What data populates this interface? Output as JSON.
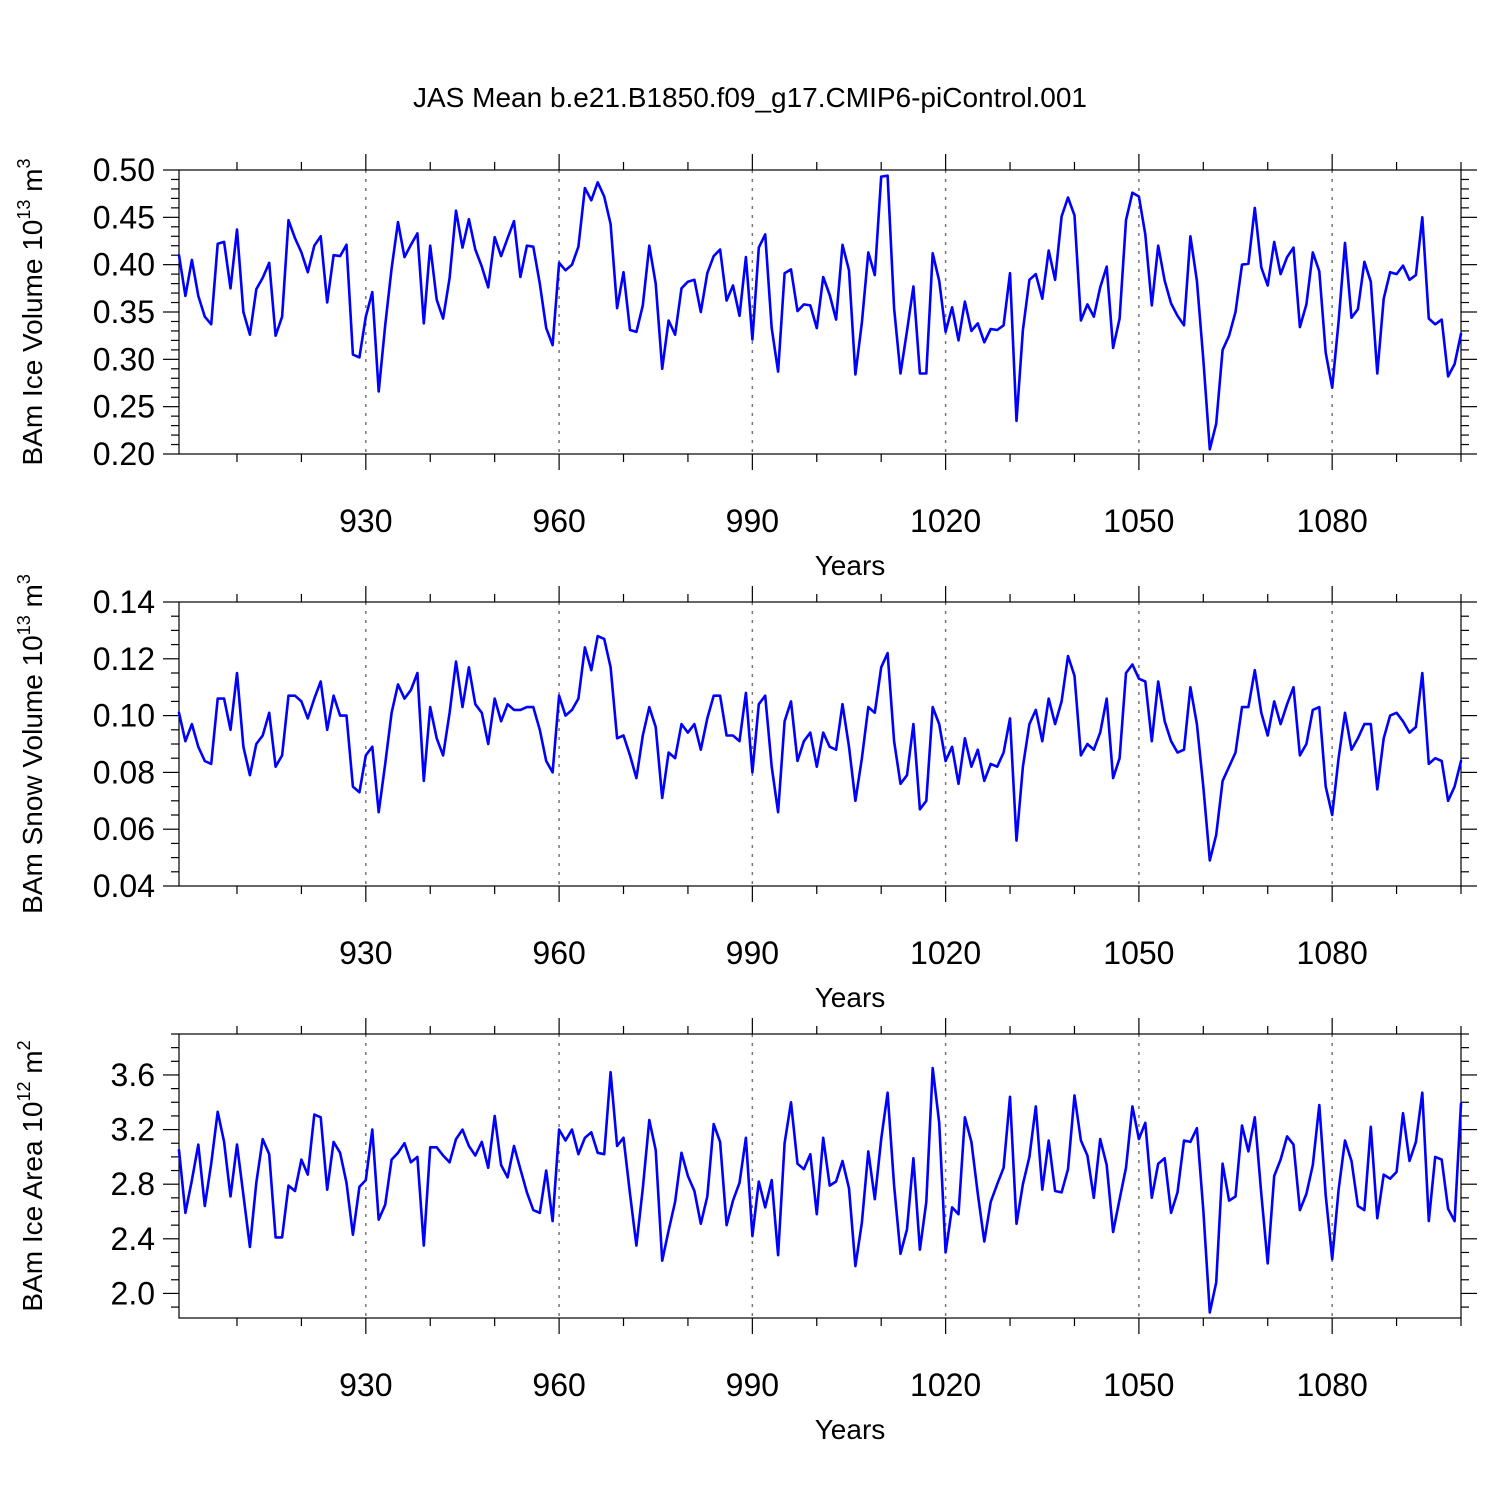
{
  "figure": {
    "title": "JAS Mean b.e21.B1850.f09_g17.CMIP6-piControl.001"
  },
  "colors": {
    "series": "#0000ff",
    "grid": "#777777",
    "axis": "#000000"
  },
  "chart_data": [
    {
      "type": "line",
      "title": "",
      "ylabel": "BAm Ice Volume 10",
      "ylabel_sup": "13",
      "ylabel_unit": "m",
      "ylabel_unit_sup": "3",
      "xlabel": "Years",
      "x_start": 901,
      "xlim": [
        901,
        1100
      ],
      "ylim": [
        0.2,
        0.5
      ],
      "yticks": [
        0.2,
        0.25,
        0.3,
        0.35,
        0.4,
        0.45,
        0.5
      ],
      "ytick_labels": [
        "0.20",
        "0.25",
        "0.30",
        "0.35",
        "0.40",
        "0.45",
        "0.50"
      ],
      "y_minor_step": 0.01,
      "xticks": [
        930,
        960,
        990,
        1020,
        1050,
        1080
      ],
      "xtick_labels": [
        "930",
        "960",
        "990",
        "1020",
        "1050",
        "1080"
      ],
      "x_minor_step": 10,
      "grid_x": true,
      "series": [
        {
          "name": "BAm Ice Volume",
          "values": [
            0.41,
            0.367,
            0.405,
            0.367,
            0.345,
            0.337,
            0.422,
            0.424,
            0.375,
            0.437,
            0.35,
            0.326,
            0.374,
            0.386,
            0.402,
            0.325,
            0.345,
            0.447,
            0.428,
            0.413,
            0.392,
            0.42,
            0.43,
            0.36,
            0.41,
            0.409,
            0.421,
            0.305,
            0.302,
            0.345,
            0.371,
            0.266,
            0.336,
            0.396,
            0.445,
            0.408,
            0.421,
            0.433,
            0.338,
            0.42,
            0.363,
            0.343,
            0.386,
            0.457,
            0.418,
            0.448,
            0.416,
            0.398,
            0.376,
            0.429,
            0.409,
            0.428,
            0.446,
            0.387,
            0.42,
            0.419,
            0.38,
            0.333,
            0.315,
            0.402,
            0.394,
            0.4,
            0.419,
            0.481,
            0.468,
            0.487,
            0.472,
            0.443,
            0.354,
            0.392,
            0.331,
            0.329,
            0.357,
            0.42,
            0.38,
            0.29,
            0.341,
            0.326,
            0.375,
            0.382,
            0.384,
            0.35,
            0.391,
            0.409,
            0.416,
            0.362,
            0.378,
            0.346,
            0.408,
            0.321,
            0.418,
            0.432,
            0.333,
            0.287,
            0.391,
            0.395,
            0.351,
            0.358,
            0.357,
            0.333,
            0.387,
            0.368,
            0.342,
            0.421,
            0.394,
            0.284,
            0.339,
            0.413,
            0.389,
            0.493,
            0.494,
            0.354,
            0.285,
            0.33,
            0.377,
            0.285,
            0.285,
            0.412,
            0.383,
            0.329,
            0.355,
            0.32,
            0.361,
            0.33,
            0.338,
            0.318,
            0.332,
            0.331,
            0.336,
            0.391,
            0.235,
            0.331,
            0.384,
            0.39,
            0.364,
            0.415,
            0.384,
            0.451,
            0.471,
            0.452,
            0.341,
            0.358,
            0.345,
            0.376,
            0.398,
            0.312,
            0.343,
            0.447,
            0.476,
            0.472,
            0.432,
            0.357,
            0.42,
            0.383,
            0.359,
            0.346,
            0.336,
            0.43,
            0.383,
            0.3,
            0.205,
            0.232,
            0.31,
            0.325,
            0.35,
            0.4,
            0.401,
            0.46,
            0.397,
            0.378,
            0.424,
            0.39,
            0.408,
            0.418,
            0.334,
            0.358,
            0.413,
            0.393,
            0.307,
            0.27,
            0.34,
            0.423,
            0.344,
            0.353,
            0.403,
            0.382,
            0.285,
            0.364,
            0.392,
            0.39,
            0.399,
            0.384,
            0.389,
            0.45,
            0.343,
            0.337,
            0.342,
            0.282,
            0.295,
            0.327
          ]
        }
      ]
    },
    {
      "type": "line",
      "title": "",
      "ylabel": "BAm Snow Volume 10",
      "ylabel_sup": "13",
      "ylabel_unit": "m",
      "ylabel_unit_sup": "3",
      "xlabel": "Years",
      "x_start": 901,
      "xlim": [
        901,
        1100
      ],
      "ylim": [
        0.04,
        0.14
      ],
      "yticks": [
        0.04,
        0.06,
        0.08,
        0.1,
        0.12,
        0.14
      ],
      "ytick_labels": [
        "0.04",
        "0.06",
        "0.08",
        "0.10",
        "0.12",
        "0.14"
      ],
      "y_minor_step": 0.005,
      "xticks": [
        930,
        960,
        990,
        1020,
        1050,
        1080
      ],
      "xtick_labels": [
        "930",
        "960",
        "990",
        "1020",
        "1050",
        "1080"
      ],
      "x_minor_step": 10,
      "grid_x": true,
      "series": [
        {
          "name": "BAm Snow Volume",
          "values": [
            0.101,
            0.091,
            0.097,
            0.089,
            0.084,
            0.083,
            0.106,
            0.106,
            0.095,
            0.115,
            0.089,
            0.079,
            0.09,
            0.093,
            0.101,
            0.082,
            0.086,
            0.107,
            0.107,
            0.105,
            0.099,
            0.106,
            0.112,
            0.095,
            0.107,
            0.1,
            0.1,
            0.075,
            0.073,
            0.086,
            0.089,
            0.066,
            0.083,
            0.101,
            0.111,
            0.106,
            0.109,
            0.115,
            0.077,
            0.103,
            0.092,
            0.086,
            0.101,
            0.119,
            0.103,
            0.117,
            0.104,
            0.101,
            0.09,
            0.106,
            0.098,
            0.104,
            0.102,
            0.102,
            0.103,
            0.103,
            0.095,
            0.084,
            0.08,
            0.107,
            0.1,
            0.102,
            0.106,
            0.124,
            0.116,
            0.128,
            0.127,
            0.117,
            0.092,
            0.093,
            0.086,
            0.078,
            0.093,
            0.103,
            0.096,
            0.071,
            0.087,
            0.085,
            0.097,
            0.094,
            0.097,
            0.088,
            0.099,
            0.107,
            0.107,
            0.093,
            0.093,
            0.091,
            0.108,
            0.08,
            0.104,
            0.107,
            0.082,
            0.066,
            0.098,
            0.105,
            0.084,
            0.091,
            0.094,
            0.082,
            0.094,
            0.089,
            0.088,
            0.104,
            0.089,
            0.07,
            0.085,
            0.103,
            0.101,
            0.117,
            0.122,
            0.091,
            0.076,
            0.079,
            0.097,
            0.067,
            0.07,
            0.103,
            0.097,
            0.084,
            0.089,
            0.076,
            0.092,
            0.082,
            0.088,
            0.077,
            0.083,
            0.082,
            0.087,
            0.099,
            0.056,
            0.082,
            0.097,
            0.102,
            0.091,
            0.106,
            0.097,
            0.105,
            0.121,
            0.114,
            0.086,
            0.09,
            0.088,
            0.094,
            0.106,
            0.078,
            0.085,
            0.115,
            0.118,
            0.113,
            0.112,
            0.091,
            0.112,
            0.098,
            0.091,
            0.087,
            0.088,
            0.11,
            0.097,
            0.075,
            0.049,
            0.058,
            0.077,
            0.082,
            0.087,
            0.103,
            0.103,
            0.116,
            0.101,
            0.093,
            0.105,
            0.097,
            0.104,
            0.11,
            0.086,
            0.09,
            0.102,
            0.103,
            0.075,
            0.065,
            0.085,
            0.101,
            0.088,
            0.092,
            0.097,
            0.097,
            0.074,
            0.092,
            0.1,
            0.101,
            0.098,
            0.094,
            0.096,
            0.115,
            0.083,
            0.085,
            0.084,
            0.07,
            0.075,
            0.084
          ]
        }
      ]
    },
    {
      "type": "line",
      "title": "",
      "ylabel": "BAm Ice Area 10",
      "ylabel_sup": "12",
      "ylabel_unit": "m",
      "ylabel_unit_sup": "2",
      "xlabel": "Years",
      "x_start": 901,
      "xlim": [
        901,
        1100
      ],
      "ylim": [
        1.82,
        3.9
      ],
      "yticks": [
        2.0,
        2.4,
        2.8,
        3.2,
        3.6
      ],
      "ytick_labels": [
        "2.0",
        "2.4",
        "2.8",
        "3.2",
        "3.6"
      ],
      "y_minor_step": 0.1,
      "xticks": [
        930,
        960,
        990,
        1020,
        1050,
        1080
      ],
      "xtick_labels": [
        "930",
        "960",
        "990",
        "1020",
        "1050",
        "1080"
      ],
      "x_minor_step": 10,
      "grid_x": true,
      "series": [
        {
          "name": "BAm Ice Area",
          "values": [
            3.05,
            2.59,
            2.83,
            3.09,
            2.64,
            2.95,
            3.33,
            3.11,
            2.71,
            3.09,
            2.72,
            2.34,
            2.81,
            3.13,
            3.02,
            2.41,
            2.41,
            2.79,
            2.75,
            2.98,
            2.87,
            3.31,
            3.29,
            2.76,
            3.11,
            3.03,
            2.81,
            2.43,
            2.78,
            2.83,
            3.2,
            2.54,
            2.65,
            2.98,
            3.03,
            3.1,
            2.96,
            3.0,
            2.35,
            3.07,
            3.07,
            3.01,
            2.96,
            3.13,
            3.2,
            3.08,
            3.01,
            3.11,
            2.92,
            3.3,
            2.94,
            2.85,
            3.08,
            2.91,
            2.74,
            2.61,
            2.59,
            2.9,
            2.53,
            3.2,
            3.12,
            3.2,
            3.02,
            3.14,
            3.18,
            3.03,
            3.02,
            3.62,
            3.08,
            3.14,
            2.73,
            2.35,
            2.77,
            3.27,
            3.05,
            2.24,
            2.46,
            2.67,
            3.03,
            2.86,
            2.75,
            2.51,
            2.71,
            3.24,
            3.11,
            2.5,
            2.68,
            2.81,
            3.14,
            2.42,
            2.82,
            2.63,
            2.83,
            2.28,
            3.1,
            3.4,
            2.95,
            2.91,
            3.02,
            2.58,
            3.14,
            2.79,
            2.82,
            2.97,
            2.77,
            2.2,
            2.52,
            3.04,
            2.69,
            3.13,
            3.47,
            2.79,
            2.29,
            2.47,
            2.99,
            2.32,
            2.67,
            3.65,
            3.25,
            2.3,
            2.63,
            2.58,
            3.29,
            3.11,
            2.73,
            2.38,
            2.67,
            2.8,
            2.92,
            3.44,
            2.51,
            2.8,
            3.0,
            3.37,
            2.76,
            3.12,
            2.75,
            2.74,
            2.91,
            3.45,
            3.12,
            3.01,
            2.7,
            3.13,
            2.94,
            2.45,
            2.69,
            2.92,
            3.37,
            3.13,
            3.25,
            2.7,
            2.95,
            2.99,
            2.59,
            2.74,
            3.12,
            3.11,
            3.21,
            2.61,
            1.86,
            2.08,
            2.95,
            2.68,
            2.71,
            3.23,
            3.04,
            3.29,
            2.73,
            2.22,
            2.86,
            2.98,
            3.15,
            3.09,
            2.61,
            2.73,
            2.94,
            3.38,
            2.72,
            2.25,
            2.76,
            3.12,
            2.97,
            2.64,
            2.61,
            3.22,
            2.55,
            2.87,
            2.84,
            2.89,
            3.32,
            2.97,
            3.11,
            3.47,
            2.53,
            3.0,
            2.98,
            2.62,
            2.53,
            3.39
          ]
        }
      ]
    }
  ]
}
